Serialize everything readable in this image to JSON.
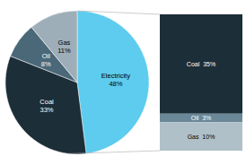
{
  "chart_data": [
    {
      "type": "pie",
      "categories": [
        "Electricity",
        "Coal",
        "Oil",
        "Gas"
      ],
      "values": [
        48,
        33,
        8,
        11
      ],
      "value_labels": [
        "48%",
        "33%",
        "8%",
        "11%"
      ],
      "colors": [
        "#5DCCEE",
        "#1C2E38",
        "#4A6878",
        "#9EAEB8"
      ],
      "data_labels": true
    },
    {
      "type": "bar",
      "stacked": true,
      "categories": [
        null
      ],
      "series": [
        {
          "name": "Coal",
          "color": "#1C2E38",
          "values": [
            35
          ],
          "value_labels": [
            "Coal  35%"
          ]
        },
        {
          "name": "Oil",
          "color": "#6A8898",
          "values": [
            3
          ],
          "value_labels": [
            "Oil  3%"
          ]
        },
        {
          "name": "Gas",
          "color": "#B0C0C8",
          "values": [
            10
          ],
          "value_labels": [
            "Gas  10%"
          ]
        }
      ],
      "ylim": [
        0,
        48
      ],
      "tick_labels": false,
      "data_labels": true
    }
  ]
}
